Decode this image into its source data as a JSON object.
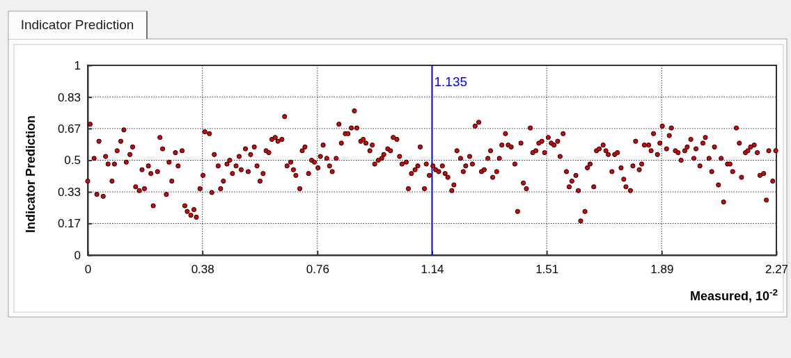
{
  "chart_data": {
    "type": "scatter",
    "title": "Indicator Prediction",
    "xlabel": "Measured, 10$^{-2}$",
    "ylabel": "Indicator Prediction",
    "xlim": [
      0,
      2.27
    ],
    "xticks": [
      0,
      {
        "value": 0.378,
        "label": "0.38"
      },
      {
        "value": 0.757,
        "label": "0.76"
      },
      {
        "value": 1.135,
        "label": "1.14"
      },
      {
        "value": 1.513,
        "label": "1.51"
      },
      {
        "value": 1.892,
        "label": "1.89"
      },
      2.27
    ],
    "ylim": [
      0,
      1
    ],
    "yticks": [
      0,
      {
        "value": 0.167,
        "label": "0.17"
      },
      {
        "value": 0.333,
        "label": "0.33"
      },
      0.5,
      {
        "value": 0.667,
        "label": "0.67"
      },
      {
        "value": 0.833,
        "label": "0.83"
      },
      1
    ],
    "grid": true,
    "marker": "circle",
    "ref_lines": [
      {
        "axis": "x",
        "value": 1.135,
        "label": "1.135",
        "color": "#0000ff"
      }
    ],
    "series": [
      {
        "color": "#e00000",
        "x": [
          0.0,
          0.008,
          0.021,
          0.03,
          0.037,
          0.051,
          0.059,
          0.067,
          0.08,
          0.088,
          0.097,
          0.109,
          0.119,
          0.127,
          0.139,
          0.148,
          0.158,
          0.17,
          0.179,
          0.187,
          0.2,
          0.208,
          0.216,
          0.23,
          0.238,
          0.247,
          0.259,
          0.268,
          0.277,
          0.289,
          0.298,
          0.311,
          0.32,
          0.328,
          0.34,
          0.35,
          0.358,
          0.37,
          0.38,
          0.386,
          0.401,
          0.409,
          0.417,
          0.43,
          0.438,
          0.447,
          0.459,
          0.468,
          0.477,
          0.489,
          0.499,
          0.506,
          0.52,
          0.529,
          0.537,
          0.549,
          0.558,
          0.568,
          0.578,
          0.588,
          0.597,
          0.607,
          0.618,
          0.627,
          0.64,
          0.649,
          0.657,
          0.669,
          0.678,
          0.686,
          0.699,
          0.707,
          0.716,
          0.728,
          0.738,
          0.747,
          0.759,
          0.767,
          0.776,
          0.788,
          0.797,
          0.806,
          0.819,
          0.828,
          0.836,
          0.849,
          0.858,
          0.869,
          0.879,
          0.887,
          0.9,
          0.908,
          0.917,
          0.93,
          0.938,
          0.946,
          0.958,
          0.969,
          0.976,
          0.989,
          0.998,
          1.007,
          1.019,
          1.028,
          1.036,
          1.05,
          1.057,
          1.067,
          1.079,
          1.088,
          1.096,
          1.11,
          1.116,
          1.126,
          1.138,
          1.147,
          1.157,
          1.169,
          1.178,
          1.187,
          1.2,
          1.207,
          1.217,
          1.229,
          1.238,
          1.246,
          1.259,
          1.268,
          1.277,
          1.289,
          1.298,
          1.307,
          1.319,
          1.328,
          1.335,
          1.348,
          1.357,
          1.365,
          1.377,
          1.386,
          1.396,
          1.408,
          1.417,
          1.428,
          1.436,
          1.446,
          1.459,
          1.467,
          1.477,
          1.487,
          1.497,
          1.506,
          1.518,
          1.528,
          1.537,
          1.549,
          1.557,
          1.567,
          1.578,
          1.587,
          1.596,
          1.609,
          1.617,
          1.625,
          1.639,
          1.647,
          1.656,
          1.668,
          1.677,
          1.686,
          1.699,
          1.708,
          1.716,
          1.728,
          1.737,
          1.746,
          1.758,
          1.767,
          1.774,
          1.789,
          1.797,
          1.806,
          1.818,
          1.826,
          1.835,
          1.849,
          1.857,
          1.865,
          1.878,
          1.886,
          1.894,
          1.908,
          1.917,
          1.924,
          1.937,
          1.946,
          1.956,
          1.968,
          1.976,
          1.988,
          1.998,
          2.005,
          2.018,
          2.028,
          2.036,
          2.048,
          2.057,
          2.066,
          2.079,
          2.088,
          2.096,
          2.109,
          2.117,
          2.126,
          2.138,
          2.148,
          2.155,
          2.168,
          2.176,
          2.185,
          2.197,
          2.207,
          2.216,
          2.228,
          2.237,
          2.245,
          2.258,
          2.268
        ],
        "values": [
          0.39,
          0.69,
          0.51,
          0.32,
          0.6,
          0.31,
          0.52,
          0.48,
          0.39,
          0.48,
          0.55,
          0.6,
          0.66,
          0.49,
          0.53,
          0.57,
          0.36,
          0.34,
          0.45,
          0.35,
          0.47,
          0.43,
          0.26,
          0.44,
          0.62,
          0.56,
          0.32,
          0.49,
          0.39,
          0.54,
          0.47,
          0.55,
          0.26,
          0.23,
          0.21,
          0.24,
          0.2,
          0.35,
          0.42,
          0.65,
          0.64,
          0.33,
          0.53,
          0.47,
          0.35,
          0.39,
          0.48,
          0.5,
          0.43,
          0.47,
          0.52,
          0.45,
          0.56,
          0.44,
          0.53,
          0.57,
          0.47,
          0.39,
          0.43,
          0.55,
          0.54,
          0.61,
          0.62,
          0.6,
          0.61,
          0.73,
          0.47,
          0.49,
          0.45,
          0.42,
          0.35,
          0.55,
          0.57,
          0.43,
          0.5,
          0.49,
          0.46,
          0.52,
          0.58,
          0.51,
          0.47,
          0.44,
          0.51,
          0.69,
          0.59,
          0.64,
          0.64,
          0.67,
          0.76,
          0.67,
          0.6,
          0.61,
          0.59,
          0.55,
          0.58,
          0.48,
          0.5,
          0.51,
          0.53,
          0.56,
          0.55,
          0.62,
          0.61,
          0.52,
          0.48,
          0.49,
          0.35,
          0.43,
          0.45,
          0.47,
          0.57,
          0.35,
          0.48,
          0.42,
          0.47,
          0.45,
          0.44,
          0.47,
          0.43,
          0.41,
          0.34,
          0.37,
          0.55,
          0.51,
          0.44,
          0.47,
          0.52,
          0.48,
          0.68,
          0.7,
          0.44,
          0.45,
          0.51,
          0.55,
          0.41,
          0.44,
          0.51,
          0.58,
          0.64,
          0.58,
          0.57,
          0.48,
          0.23,
          0.59,
          0.38,
          0.35,
          0.67,
          0.54,
          0.55,
          0.59,
          0.6,
          0.54,
          0.62,
          0.59,
          0.58,
          0.6,
          0.52,
          0.64,
          0.44,
          0.36,
          0.39,
          0.42,
          0.34,
          0.18,
          0.23,
          0.46,
          0.48,
          0.36,
          0.55,
          0.56,
          0.58,
          0.55,
          0.53,
          0.44,
          0.53,
          0.54,
          0.46,
          0.4,
          0.36,
          0.34,
          0.47,
          0.6,
          0.45,
          0.48,
          0.58,
          0.58,
          0.55,
          0.64,
          0.53,
          0.59,
          0.68,
          0.56,
          0.63,
          0.67,
          0.55,
          0.54,
          0.5,
          0.55,
          0.57,
          0.61,
          0.51,
          0.56,
          0.47,
          0.59,
          0.62,
          0.51,
          0.44,
          0.57,
          0.37,
          0.51,
          0.28,
          0.48,
          0.48,
          0.44,
          0.67,
          0.59,
          0.41,
          0.54,
          0.55,
          0.57,
          0.58,
          0.54,
          0.42,
          0.43,
          0.29,
          0.55,
          0.39,
          0.55
        ]
      }
    ]
  }
}
